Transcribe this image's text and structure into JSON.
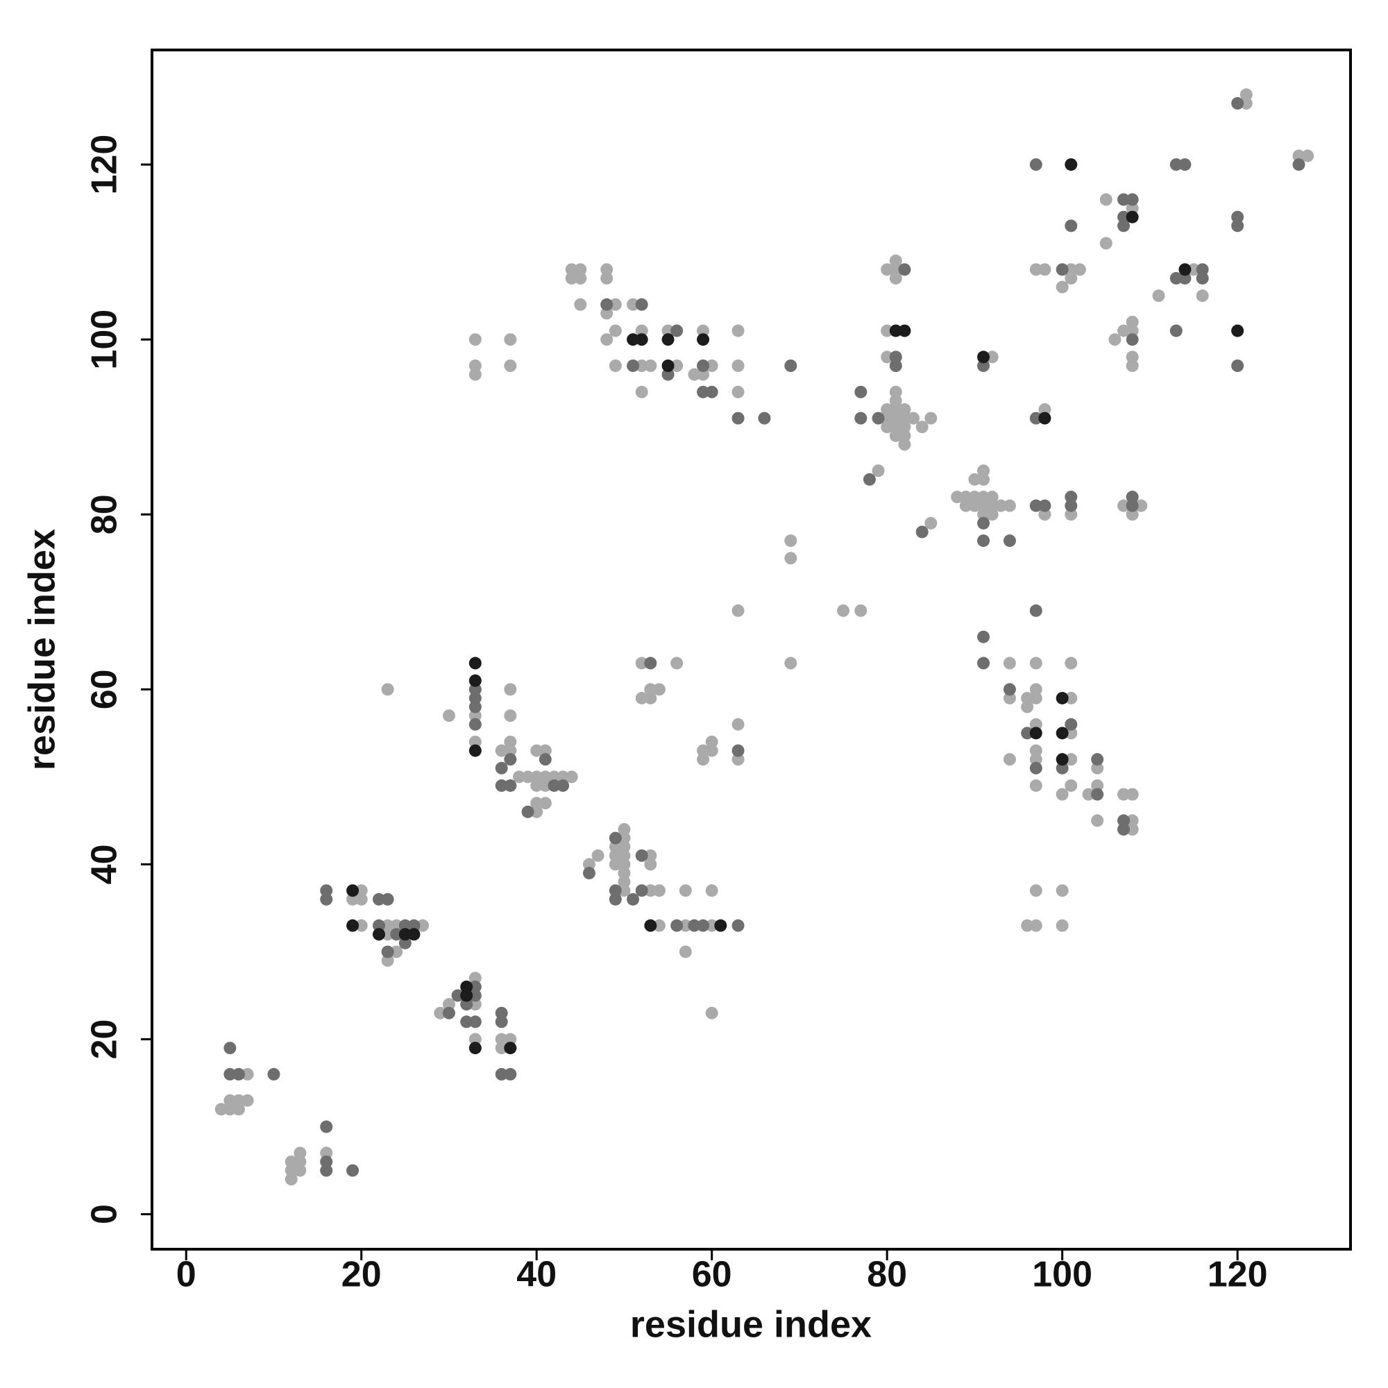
{
  "chart_data": {
    "type": "scatter",
    "x_label": "residue index",
    "y_label": "residue index",
    "xlim": [
      -3.9,
      132.9
    ],
    "ylim": [
      -4.0,
      133.1
    ],
    "xticks": [
      0,
      20,
      40,
      60,
      80,
      100,
      120
    ],
    "yticks": [
      0,
      20,
      40,
      60,
      80,
      100,
      120
    ],
    "series": [
      {
        "color": "#aaaaaa",
        "x": [
          7,
          4,
          5,
          6,
          5,
          6,
          7,
          12,
          12,
          12,
          13,
          13,
          13,
          16,
          19,
          20,
          20,
          20,
          23,
          23,
          23,
          24,
          24,
          27,
          23,
          30,
          29,
          30,
          33,
          33,
          33,
          36,
          36,
          37,
          33,
          33,
          33,
          33,
          33,
          37,
          37,
          37,
          37,
          37,
          37,
          36,
          38,
          39,
          40,
          40,
          40,
          41,
          40,
          41,
          40,
          41,
          41,
          42,
          43,
          44,
          46,
          47,
          49,
          49,
          49,
          50,
          50,
          50,
          50,
          50,
          50,
          50,
          50,
          53,
          53,
          53,
          54,
          54,
          57,
          57,
          57,
          60,
          60,
          60,
          52,
          52,
          53,
          53,
          54,
          56,
          59,
          59,
          60,
          60,
          63,
          63,
          63,
          44,
          44,
          45,
          45,
          45,
          48,
          48,
          48,
          48,
          49,
          49,
          49,
          51,
          52,
          52,
          52,
          53,
          55,
          56,
          58,
          59,
          59,
          60,
          63,
          63,
          63,
          69,
          69,
          69,
          75,
          77,
          79,
          80,
          81,
          81,
          81,
          80,
          80,
          81,
          80,
          80,
          80,
          81,
          81,
          81,
          81,
          81,
          82,
          82,
          82,
          82,
          82,
          83,
          84,
          85,
          85,
          88,
          89,
          89,
          90,
          90,
          90,
          91,
          91,
          91,
          91,
          91,
          92,
          92,
          92,
          93,
          94,
          92,
          94,
          94,
          94,
          96,
          96,
          97,
          97,
          97,
          97,
          97,
          97,
          97,
          97,
          96,
          97,
          101,
          101,
          101,
          101,
          101,
          100,
          103,
          104,
          104,
          104,
          100,
          100,
          107,
          108,
          108,
          108,
          98,
          98,
          101,
          107,
          108,
          109,
          97,
          98,
          101,
          101,
          102,
          100,
          105,
          105,
          108,
          106,
          107,
          108,
          108,
          108,
          108,
          111,
          115,
          116,
          121,
          121,
          127,
          128
        ],
        "values": [
          16,
          12,
          12,
          12,
          13,
          13,
          13,
          4,
          5,
          6,
          5,
          6,
          7,
          7,
          36,
          37,
          36,
          33,
          33,
          32,
          29,
          33,
          30,
          33,
          60,
          57,
          23,
          24,
          27,
          24,
          20,
          20,
          19,
          20,
          57,
          54,
          100,
          97,
          96,
          100,
          97,
          60,
          57,
          54,
          53,
          53,
          50,
          50,
          50,
          46,
          47,
          47,
          53,
          53,
          49,
          50,
          49,
          50,
          50,
          50,
          40,
          41,
          42,
          41,
          40,
          44,
          43,
          42,
          41,
          40,
          39,
          38,
          37,
          41,
          40,
          37,
          37,
          33,
          37,
          33,
          30,
          37,
          33,
          23,
          63,
          59,
          59,
          60,
          60,
          63,
          53,
          52,
          54,
          53,
          56,
          52,
          69,
          108,
          107,
          108,
          107,
          104,
          108,
          107,
          103,
          100,
          104,
          101,
          97,
          104,
          101,
          97,
          94,
          97,
          101,
          97,
          96,
          101,
          96,
          97,
          101,
          97,
          94,
          77,
          75,
          63,
          69,
          69,
          85,
          108,
          109,
          108,
          107,
          101,
          98,
          94,
          92,
          91,
          90,
          93,
          92,
          91,
          90,
          89,
          92,
          91,
          90,
          89,
          88,
          91,
          90,
          91,
          79,
          82,
          82,
          81,
          82,
          81,
          84,
          85,
          84,
          82,
          81,
          80,
          82,
          81,
          80,
          81,
          81,
          98,
          63,
          59,
          52,
          59,
          58,
          63,
          60,
          59,
          56,
          53,
          52,
          49,
          37,
          33,
          33,
          59,
          63,
          55,
          52,
          49,
          48,
          48,
          51,
          49,
          45,
          37,
          33,
          48,
          48,
          45,
          44,
          92,
          80,
          80,
          81,
          80,
          81,
          108,
          108,
          108,
          107,
          108,
          106,
          116,
          111,
          115,
          100,
          101,
          102,
          101,
          98,
          97,
          105,
          108,
          105,
          128,
          127,
          121,
          121
        ]
      },
      {
        "color": "#6e6e6e",
        "x": [
          5,
          5,
          6,
          10,
          16,
          16,
          16,
          19,
          16,
          16,
          22,
          23,
          22,
          23,
          24,
          25,
          25,
          26,
          30,
          31,
          32,
          32,
          33,
          33,
          33,
          36,
          36,
          36,
          37,
          33,
          33,
          33,
          33,
          37,
          36,
          36,
          37,
          39,
          41,
          42,
          43,
          46,
          49,
          49,
          49,
          51,
          52,
          52,
          56,
          58,
          59,
          63,
          53,
          63,
          48,
          52,
          51,
          56,
          55,
          59,
          59,
          60,
          63,
          66,
          69,
          77,
          77,
          79,
          78,
          82,
          81,
          81,
          84,
          91,
          91,
          94,
          91,
          91,
          91,
          94,
          96,
          97,
          97,
          101,
          100,
          104,
          104,
          107,
          107,
          97,
          97,
          98,
          101,
          101,
          108,
          108,
          97,
          101,
          100,
          107,
          108,
          107,
          107,
          108,
          113,
          114,
          113,
          114,
          116,
          116,
          113,
          120,
          120,
          120,
          120,
          127
        ],
        "values": [
          19,
          16,
          16,
          16,
          5,
          6,
          10,
          5,
          37,
          36,
          36,
          36,
          33,
          30,
          32,
          33,
          31,
          33,
          23,
          25,
          24,
          22,
          26,
          25,
          22,
          23,
          22,
          16,
          16,
          60,
          59,
          58,
          56,
          52,
          51,
          49,
          49,
          46,
          52,
          49,
          49,
          39,
          43,
          37,
          36,
          36,
          41,
          37,
          33,
          33,
          33,
          33,
          63,
          53,
          104,
          104,
          97,
          101,
          96,
          97,
          94,
          94,
          91,
          91,
          97,
          94,
          91,
          91,
          84,
          108,
          98,
          97,
          78,
          79,
          77,
          77,
          97,
          66,
          63,
          60,
          55,
          69,
          51,
          56,
          51,
          52,
          48,
          45,
          44,
          91,
          81,
          81,
          82,
          81,
          82,
          81,
          120,
          113,
          108,
          116,
          116,
          114,
          113,
          100,
          120,
          120,
          107,
          107,
          108,
          107,
          101,
          127,
          114,
          113,
          97,
          120
        ]
      },
      {
        "color": "#1c1c1c",
        "x": [
          19,
          19,
          22,
          25,
          26,
          32,
          32,
          33,
          37,
          33,
          33,
          33,
          53,
          61,
          51,
          52,
          55,
          55,
          59,
          81,
          82,
          91,
          97,
          100,
          100,
          100,
          98,
          101,
          108,
          114,
          120
        ],
        "values": [
          37,
          33,
          32,
          32,
          32,
          26,
          25,
          19,
          19,
          63,
          61,
          53,
          33,
          33,
          100,
          100,
          100,
          97,
          100,
          101,
          101,
          98,
          55,
          59,
          55,
          52,
          91,
          120,
          114,
          108,
          101
        ]
      }
    ]
  }
}
